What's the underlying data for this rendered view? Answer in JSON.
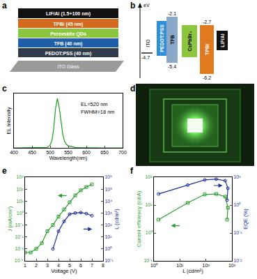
{
  "panel_a": {
    "panel": "a",
    "layers": [
      {
        "label": "LiF/Al (1.5+100 nm)",
        "color": "#111111"
      },
      {
        "label": "TPBi (45 nm)",
        "color": "#d2691e"
      },
      {
        "label": "Perovskite QDs",
        "color": "#8cc63f"
      },
      {
        "label": "TFB (40 nm)",
        "color": "#1f5fa8"
      },
      {
        "label": "PEDOT:PSS (40 nm)",
        "color": "#2f3b4a"
      },
      {
        "label": "ITO Glass",
        "color": "#9a9a9a"
      }
    ]
  },
  "panel_b": {
    "panel": "b",
    "axis_label": "eV",
    "bars": [
      {
        "name": "ITO",
        "level": -4.7,
        "color": "#555555"
      },
      {
        "name": "PEDOT:PSS",
        "color": "#2f8fd8"
      },
      {
        "name": "TFB",
        "top": -2.1,
        "bottom": -5.4,
        "color": "#8aa8c8"
      },
      {
        "name": "CsPbBr₃",
        "color": "#8cc63f"
      },
      {
        "name": "TPBi",
        "top": -2.7,
        "bottom": -6.2,
        "color": "#e07a1f"
      },
      {
        "name": "LiF/Al",
        "color": "#111111"
      }
    ]
  },
  "panel_d": {
    "panel": "d"
  },
  "chart_data": [
    {
      "panel": "c",
      "type": "line",
      "x": [
        400,
        420,
        440,
        460,
        480,
        490,
        495,
        500,
        505,
        510,
        515,
        520,
        525,
        530,
        535,
        540,
        545,
        550,
        560,
        570,
        580,
        600,
        620,
        640,
        660,
        680,
        700
      ],
      "values": [
        0,
        0,
        0,
        0,
        0.005,
        0.01,
        0.02,
        0.06,
        0.15,
        0.4,
        0.8,
        1.0,
        0.82,
        0.5,
        0.27,
        0.13,
        0.07,
        0.04,
        0.02,
        0.01,
        0.005,
        0,
        0,
        0,
        0,
        0,
        0
      ],
      "color": "#1aa01a",
      "x_label": "Wavelength(nm)",
      "y_label": "EL Intensity",
      "xlim": [
        400,
        700
      ],
      "xticks": [
        400,
        450,
        500,
        550,
        600,
        650,
        700
      ],
      "ylim": [
        0,
        1.1
      ],
      "tick_labels": "x",
      "annotations": [
        "EL=520 nm",
        "FWHM=18 nm"
      ]
    },
    {
      "panel": "e",
      "type": "line",
      "log": "y",
      "x": [
        1,
        1.5,
        2,
        2.5,
        3,
        3.5,
        4,
        4.5,
        5,
        5.5,
        6,
        6.5,
        7
      ],
      "series": [
        {
          "color": "#2a9d2a",
          "marker": "square-open",
          "values": [
            0.0005,
            0.0005,
            0.001,
            0.003,
            0.03,
            0.1,
            0.5,
            2,
            8,
            30,
            80,
            150,
            250
          ]
        },
        {
          "axis": "y2",
          "color": "#1c2f9c",
          "marker": "circle-open",
          "values": [
            null,
            null,
            null,
            null,
            null,
            1,
            30,
            200,
            800,
            1000,
            1100,
            900,
            600
          ]
        }
      ],
      "x_label": "Voltage (V)",
      "y_label": "J (mA/cm²)",
      "y2_label": "L (cd/m²)",
      "xlim": [
        1,
        8
      ],
      "xticks": [
        1,
        2,
        3,
        4,
        5,
        6,
        7,
        8
      ],
      "ylim": [
        0.0001,
        1000
      ],
      "yticks": [
        {
          "value": 0.0001,
          "label": "10⁻⁴"
        },
        {
          "value": 0.001,
          "label": "10⁻³"
        },
        {
          "value": 0.01,
          "label": "10⁻²"
        },
        {
          "value": 0.1,
          "label": "10⁻¹"
        },
        {
          "value": 1,
          "label": "10⁰"
        },
        {
          "value": 10,
          "label": "10¹"
        },
        {
          "value": 100,
          "label": "10²"
        },
        {
          "value": 1000,
          "label": "10³"
        }
      ],
      "y2lim": [
        0.1,
        1000000
      ],
      "y2ticks": [
        {
          "value": 0.1,
          "label": "10⁻¹"
        },
        {
          "value": 1,
          "label": "10⁰"
        },
        {
          "value": 10,
          "label": "10¹"
        },
        {
          "value": 100,
          "label": "10²"
        },
        {
          "value": 1000,
          "label": "10³"
        },
        {
          "value": 10000,
          "label": "10⁴"
        },
        {
          "value": 100000,
          "label": "10⁵"
        },
        {
          "value": 1000000,
          "label": "10⁶"
        }
      ]
    },
    {
      "panel": "f",
      "type": "line",
      "log": true,
      "x": [
        1.5,
        20,
        90,
        250,
        550,
        700,
        650
      ],
      "series": [
        {
          "color": "#2a9d2a",
          "marker": "square-open",
          "values": [
            3,
            12,
            24,
            25,
            20,
            8,
            3
          ]
        },
        {
          "axis": "y2",
          "color": "#1c2f9c",
          "marker": "circle-open",
          "values": [
            2.5,
            5.2,
            8,
            8.5,
            7.5,
            4,
            1.5
          ]
        }
      ],
      "x_label": "L (cd/m²)",
      "y_label": "Current efficiency (cd/A)",
      "y2_label": "EQE (%)",
      "xlim": [
        1,
        1000
      ],
      "xticks": [
        {
          "value": 1,
          "label": "10⁰"
        },
        {
          "value": 10,
          "label": "10¹"
        },
        {
          "value": 100,
          "label": "10²"
        },
        {
          "value": 1000,
          "label": "10³"
        }
      ],
      "ylim": [
        0.1,
        100
      ],
      "yticks": [
        {
          "value": 0.1,
          "label": "10⁻¹"
        },
        {
          "value": 1,
          "label": "10⁰"
        },
        {
          "value": 10,
          "label": "10¹"
        },
        {
          "value": 100,
          "label": "10²"
        }
      ],
      "y2lim": [
        0.01,
        10
      ],
      "y2ticks": [
        {
          "value": 0.01,
          "label": "10⁻²"
        },
        {
          "value": 0.1,
          "label": "10⁻¹"
        },
        {
          "value": 1,
          "label": "10⁰"
        },
        {
          "value": 10,
          "label": "10¹"
        }
      ]
    }
  ]
}
